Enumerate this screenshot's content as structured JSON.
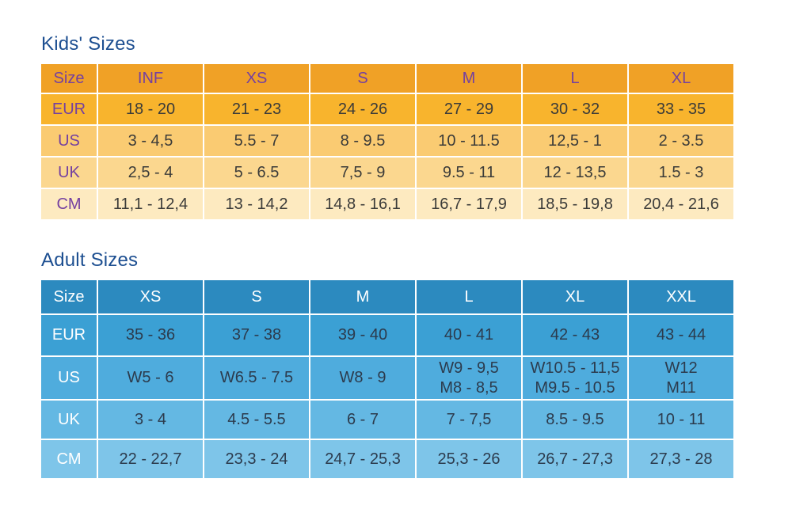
{
  "titles": {
    "color": "#1d4f91"
  },
  "kids": {
    "title": "Kids' Sizes",
    "table": {
      "size_label": "Size",
      "columns": [
        "INF",
        "XS",
        "S",
        "M",
        "L",
        "XL"
      ],
      "rows": [
        {
          "label": "EUR",
          "values": [
            "18 - 20",
            "21 - 23",
            "24 - 26",
            "27 - 29",
            "30 - 32",
            "33 - 35"
          ]
        },
        {
          "label": "US",
          "values": [
            "3 - 4,5",
            "5.5 - 7",
            "8 - 9.5",
            "10 - 11.5",
            "12,5 - 1",
            "2 - 3.5"
          ]
        },
        {
          "label": "UK",
          "values": [
            "2,5 - 4",
            "5 - 6.5",
            "7,5 - 9",
            "9.5 - 11",
            "12 - 13,5",
            "1.5 - 3"
          ]
        },
        {
          "label": "CM",
          "values": [
            "11,1 - 12,4",
            "13 - 14,2",
            "14,8 - 16,1",
            "16,7 - 17,9",
            "18,5 - 19,8",
            "20,4 - 21,6"
          ]
        }
      ],
      "colors": {
        "header_bg": "#f0a126",
        "row_bgs": [
          "#f8b42d",
          "#facb72",
          "#fbd78f",
          "#fdeac0"
        ],
        "header_text": "#7440a0",
        "label_text": "#7440a0",
        "value_text": "#3b3b39"
      }
    }
  },
  "adult": {
    "title": "Adult Sizes",
    "table": {
      "size_label": "Size",
      "columns": [
        "XS",
        "S",
        "M",
        "L",
        "XL",
        "XXL"
      ],
      "rows": [
        {
          "label": "EUR",
          "values": [
            "35 - 36",
            "37 - 38",
            "39 - 40",
            "40 - 41",
            "42 - 43",
            "43 - 44"
          ]
        },
        {
          "label": "US",
          "values": [
            "W5 - 6",
            "W6.5 - 7.5",
            "W8 - 9",
            [
              "W9 - 9,5",
              "M8 - 8,5"
            ],
            [
              "W10.5 - 11,5",
              "M9.5 - 10.5"
            ],
            [
              "W12",
              "M11"
            ]
          ]
        },
        {
          "label": "UK",
          "values": [
            "3 - 4",
            "4.5 - 5.5",
            "6 - 7",
            "7 - 7,5",
            "8.5 - 9.5",
            "10 - 11"
          ]
        },
        {
          "label": "CM",
          "values": [
            "22 - 22,7",
            "23,3 - 24",
            "24,7 - 25,3",
            "25,3 - 26",
            "26,7 - 27,3",
            "27,3 - 28"
          ]
        }
      ],
      "colors": {
        "header_bg": "#2c8abf",
        "row_bgs": [
          "#3ba0d4",
          "#4facdd",
          "#64b8e3",
          "#7ec5e9"
        ],
        "header_text": "#ffffff",
        "label_text": "#ffffff",
        "value_text": "#2c3b4d"
      }
    }
  },
  "chart_data": [
    {
      "type": "table",
      "title": "Kids' Sizes",
      "columns": [
        "Size",
        "INF",
        "XS",
        "S",
        "M",
        "L",
        "XL"
      ],
      "rows": [
        [
          "EUR",
          "18 - 20",
          "21 - 23",
          "24 - 26",
          "27 - 29",
          "30 - 32",
          "33 - 35"
        ],
        [
          "US",
          "3 - 4,5",
          "5.5 - 7",
          "8 - 9.5",
          "10 - 11.5",
          "12,5 - 1",
          "2 - 3.5"
        ],
        [
          "UK",
          "2,5 - 4",
          "5 - 6.5",
          "7,5 - 9",
          "9.5 - 11",
          "12 - 13,5",
          "1.5 - 3"
        ],
        [
          "CM",
          "11,1 - 12,4",
          "13 - 14,2",
          "14,8 - 16,1",
          "16,7 - 17,9",
          "18,5 - 19,8",
          "20,4 - 21,6"
        ]
      ]
    },
    {
      "type": "table",
      "title": "Adult Sizes",
      "columns": [
        "Size",
        "XS",
        "S",
        "M",
        "L",
        "XL",
        "XXL"
      ],
      "rows": [
        [
          "EUR",
          "35 - 36",
          "37 - 38",
          "39 - 40",
          "40 - 41",
          "42 - 43",
          "43 - 44"
        ],
        [
          "US",
          "W5 - 6",
          "W6.5 - 7.5",
          "W8 - 9",
          "W9 - 9,5 / M8 - 8,5",
          "W10.5 - 11,5 / M9.5 - 10.5",
          "W12 / M11"
        ],
        [
          "UK",
          "3 - 4",
          "4.5 - 5.5",
          "6 - 7",
          "7 - 7,5",
          "8.5 - 9.5",
          "10 - 11"
        ],
        [
          "CM",
          "22 - 22,7",
          "23,3 - 24",
          "24,7 - 25,3",
          "25,3 - 26",
          "26,7 - 27,3",
          "27,3 - 28"
        ]
      ]
    }
  ]
}
